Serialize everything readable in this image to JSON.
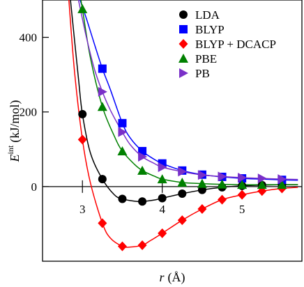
{
  "chart_data": {
    "type": "scatter",
    "xlabel": {
      "symbol": "r",
      "unit": "(Å)"
    },
    "ylabel": {
      "symbol": "E",
      "superscript": "int",
      "unit": "(kJ/mol)"
    },
    "xlim": [
      2.5,
      5.75
    ],
    "ylim": [
      -200,
      500
    ],
    "x_ticks": [
      3,
      4,
      5
    ],
    "y_ticks": [
      0,
      200,
      400
    ],
    "x_tick_labels": [
      "3",
      "4",
      "5"
    ],
    "y_tick_labels": [
      "0",
      "200",
      "400"
    ],
    "legend_position": "top-right",
    "grid": false,
    "series": [
      {
        "name": "LDA",
        "color": "#000000",
        "marker": "circle",
        "x": [
          3.0,
          3.25,
          3.5,
          3.75,
          4.0,
          4.25,
          4.5,
          4.75,
          5.0,
          5.25,
          5.5
        ],
        "y": [
          194,
          20,
          -33,
          -40,
          -31,
          -19,
          -9,
          -2,
          2,
          4,
          5
        ],
        "curve_x": [
          2.85,
          2.95,
          3.0,
          3.1,
          3.25,
          3.4,
          3.5,
          3.65,
          3.75,
          3.9,
          4.0,
          4.25,
          4.5,
          4.75,
          5.0,
          5.25,
          5.5,
          5.7
        ],
        "curve_y": [
          500,
          290,
          194,
          90,
          20,
          -22,
          -33,
          -39,
          -40,
          -36,
          -31,
          -19,
          -9,
          -2,
          2,
          4,
          5,
          5
        ]
      },
      {
        "name": "BLYP",
        "color": "#0000ff",
        "marker": "square",
        "x": [
          3.25,
          3.5,
          3.75,
          4.0,
          4.25,
          4.5,
          4.75,
          5.0,
          5.5
        ],
        "y": [
          316,
          170,
          95,
          62,
          43,
          32,
          26,
          22,
          18
        ],
        "curve_x": [
          2.97,
          3.05,
          3.15,
          3.25,
          3.35,
          3.5,
          3.6,
          3.75,
          3.9,
          4.0,
          4.25,
          4.5,
          4.75,
          5.0,
          5.25,
          5.5,
          5.7
        ],
        "curve_y": [
          500,
          450,
          382,
          316,
          260,
          170,
          130,
          95,
          73,
          62,
          43,
          32,
          26,
          22,
          20,
          18,
          17
        ]
      },
      {
        "name": "BLYP + DCACP",
        "color": "#ff0000",
        "marker": "diamond",
        "x": [
          3.0,
          3.25,
          3.5,
          3.75,
          4.0,
          4.25,
          4.5,
          4.75,
          5.0,
          5.25,
          5.5
        ],
        "y": [
          126,
          -98,
          -160,
          -157,
          -125,
          -90,
          -60,
          -35,
          -22,
          -12,
          -5
        ],
        "curve_x": [
          2.83,
          2.9,
          3.0,
          3.1,
          3.25,
          3.35,
          3.5,
          3.6,
          3.75,
          3.85,
          4.0,
          4.25,
          4.5,
          4.75,
          5.0,
          5.25,
          5.5,
          5.7
        ],
        "curve_y": [
          500,
          310,
          126,
          10,
          -98,
          -138,
          -160,
          -162,
          -157,
          -145,
          -125,
          -90,
          -60,
          -35,
          -22,
          -12,
          -5,
          -2
        ]
      },
      {
        "name": "PBE",
        "color": "#008000",
        "marker": "triangle-up",
        "x": [
          3.0,
          3.25,
          3.5,
          3.75,
          4.0,
          4.25,
          4.5,
          4.75,
          5.0,
          5.25,
          5.5
        ],
        "y": [
          476,
          214,
          95,
          43,
          20,
          11,
          8,
          6,
          5,
          5,
          5
        ],
        "curve_x": [
          2.98,
          3.0,
          3.1,
          3.25,
          3.4,
          3.5,
          3.65,
          3.75,
          3.9,
          4.0,
          4.25,
          4.5,
          4.75,
          5.0,
          5.25,
          5.5,
          5.7
        ],
        "curve_y": [
          500,
          476,
          345,
          214,
          135,
          95,
          60,
          43,
          28,
          20,
          11,
          8,
          6,
          5,
          5,
          5,
          5
        ]
      },
      {
        "name": "PB",
        "color": "#7a30c8",
        "marker": "triangle-right",
        "x": [
          3.25,
          3.5,
          3.75,
          4.0,
          4.25,
          4.5,
          4.75,
          5.0,
          5.25,
          5.5
        ],
        "y": [
          254,
          146,
          80,
          52,
          40,
          31,
          27,
          24,
          22,
          20
        ],
        "curve_x": [
          2.95,
          3.05,
          3.15,
          3.25,
          3.35,
          3.5,
          3.6,
          3.75,
          3.9,
          4.0,
          4.25,
          4.5,
          4.75,
          5.0,
          5.25,
          5.5,
          5.7
        ],
        "curve_y": [
          500,
          400,
          315,
          254,
          205,
          146,
          112,
          80,
          62,
          52,
          40,
          31,
          27,
          24,
          22,
          20,
          19
        ]
      }
    ]
  }
}
